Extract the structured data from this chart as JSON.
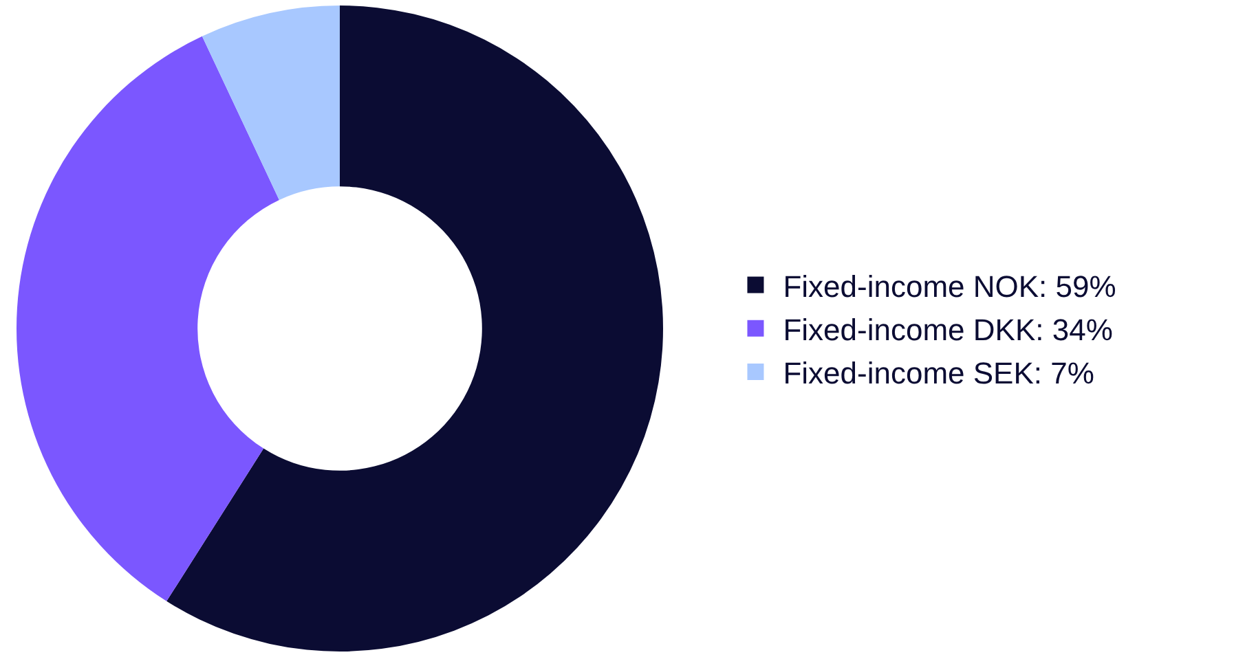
{
  "chart_data": {
    "type": "donut",
    "categories": [
      "Fixed-income NOK: 59%",
      "Fixed-income DKK: 34%",
      "Fixed-income SEK: 7%"
    ],
    "values": [
      59,
      34,
      7
    ],
    "colors": [
      "#0b0c33",
      "#7b57ff",
      "#a8c8ff"
    ],
    "legend": "right"
  }
}
